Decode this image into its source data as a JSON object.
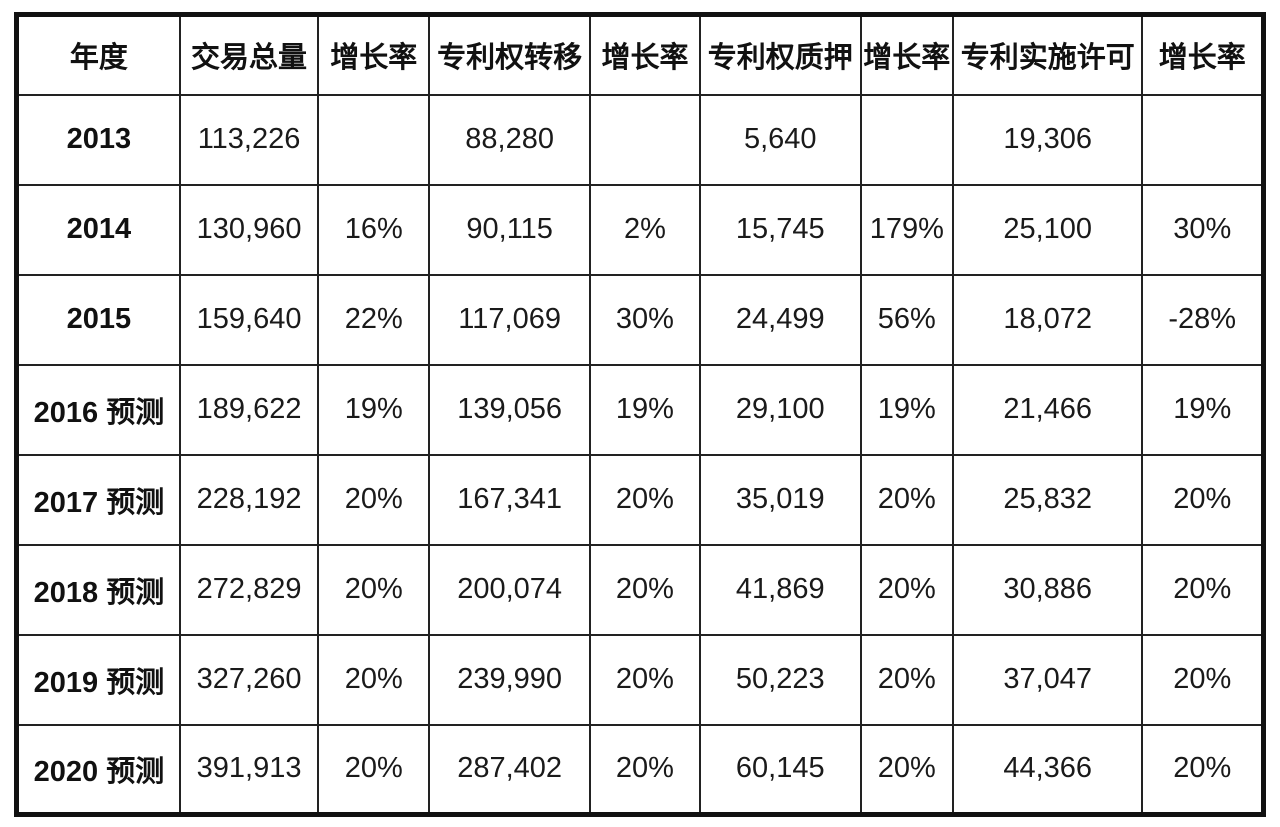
{
  "table": {
    "columns": [
      "年度",
      "交易总量",
      "增长率",
      "专利权转移",
      "增长率",
      "专利权质押",
      "增长率",
      "专利实施许可",
      "增长率"
    ],
    "rows": [
      {
        "year": "2013",
        "cells": [
          "113,226",
          "",
          "88,280",
          "",
          "5,640",
          "",
          "19,306",
          ""
        ]
      },
      {
        "year": "2014",
        "cells": [
          "130,960",
          "16%",
          "90,115",
          "2%",
          "15,745",
          "179%",
          "25,100",
          "30%"
        ]
      },
      {
        "year": "2015",
        "cells": [
          "159,640",
          "22%",
          "117,069",
          "30%",
          "24,499",
          "56%",
          "18,072",
          "-28%"
        ]
      },
      {
        "year": "2016 预测",
        "cells": [
          "189,622",
          "19%",
          "139,056",
          "19%",
          "29,100",
          "19%",
          "21,466",
          "19%"
        ]
      },
      {
        "year": "2017 预测",
        "cells": [
          "228,192",
          "20%",
          "167,341",
          "20%",
          "35,019",
          "20%",
          "25,832",
          "20%"
        ]
      },
      {
        "year": "2018 预测",
        "cells": [
          "272,829",
          "20%",
          "200,074",
          "20%",
          "41,869",
          "20%",
          "30,886",
          "20%"
        ]
      },
      {
        "year": "2019 预测",
        "cells": [
          "327,260",
          "20%",
          "239,990",
          "20%",
          "50,223",
          "20%",
          "37,047",
          "20%"
        ]
      },
      {
        "year": "2020 预测",
        "cells": [
          "391,913",
          "20%",
          "287,402",
          "20%",
          "60,145",
          "20%",
          "44,366",
          "20%"
        ]
      }
    ]
  },
  "colors": {
    "outer_border": "#111111",
    "grid_line": "#222222",
    "text": "#1a1a1a",
    "background": "#ffffff"
  }
}
